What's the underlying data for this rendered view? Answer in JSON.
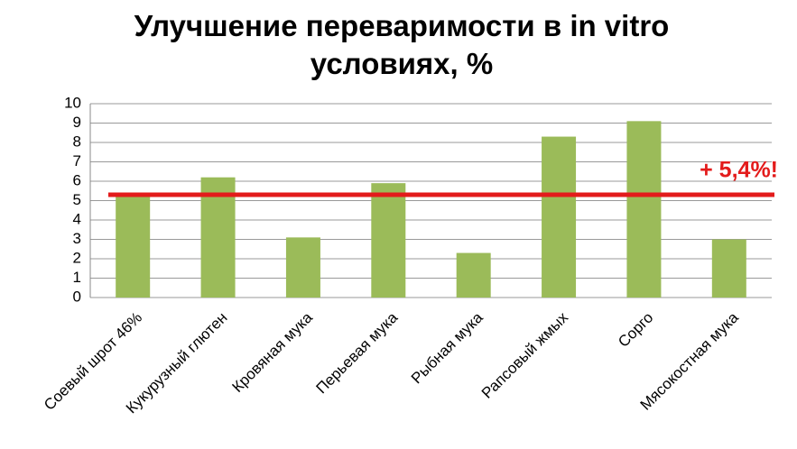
{
  "chart_data": {
    "type": "bar",
    "title": "Улучшение переваримости в in vitro условиях, %",
    "categories": [
      "Соевый шрот 46%",
      "Кукурузный глютен",
      "Кровяная мука",
      "Перьевая мука",
      "Рыбная мука",
      "Рапсовый жмых",
      "Сорго",
      "Мясокостная мука"
    ],
    "values": [
      5.3,
      6.2,
      3.1,
      5.9,
      2.3,
      8.3,
      9.1,
      3.0
    ],
    "color": "#9bbb59",
    "ylim": [
      0,
      10
    ],
    "yticks": [
      0,
      1,
      2,
      3,
      4,
      5,
      6,
      7,
      8,
      9,
      10
    ],
    "grid": true,
    "reference_line": {
      "value": 5.3,
      "color": "#e31b1b"
    },
    "annotation": "+ 5,4%!"
  }
}
